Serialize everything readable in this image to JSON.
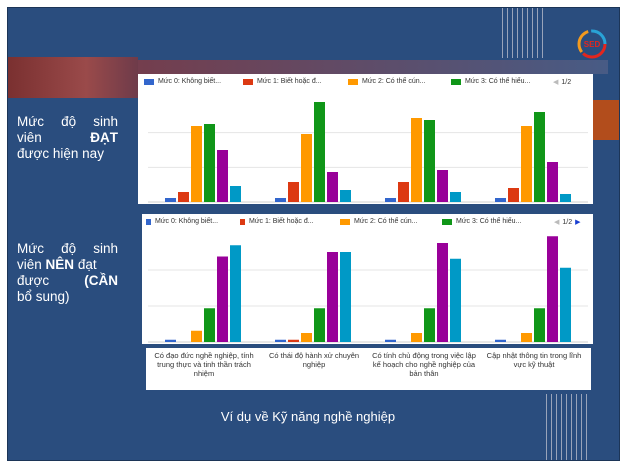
{
  "logo": {
    "text": "SED",
    "ring_colors": [
      "#e3261e",
      "#f39a1e",
      "#29a3d6"
    ]
  },
  "labels": {
    "current": {
      "line1": [
        "Mức",
        "độ",
        "sinh"
      ],
      "line2a": "viên",
      "line2b": "ĐẠT",
      "line3": "được hiện nay"
    },
    "desired": {
      "line1": [
        "Mức",
        "độ",
        "sinh"
      ],
      "line2a": "viên",
      "line2b": "NÊN",
      "line2c": "đạt",
      "line3a": "được",
      "line3b": "(CẦN",
      "line4": "bổ sung)"
    }
  },
  "caption": "Ví dụ về Kỹ năng nghề nghiệp",
  "legend": {
    "items": [
      {
        "label": "Mức 0: Không biết...",
        "color": "#3366cc"
      },
      {
        "label": "Mức 1: Biết hoặc đ...",
        "color": "#dc3912"
      },
      {
        "label": "Mức 2: Có thể cún...",
        "color": "#ff9900"
      },
      {
        "label": "Mức 3: Có thể hiểu...",
        "color": "#109618"
      }
    ],
    "page": "1/2"
  },
  "chart_data": [
    {
      "type": "bar",
      "categories": [
        "Có đạo đức nghề nghiệp, tính trung thực và tinh thần trách nhiệm",
        "Có thái độ hành xử chuyên nghiệp",
        "Có tính chủ động trong việc lập kế hoạch cho nghề nghiệp của bản thân",
        "Cập nhật thông tin trong lĩnh vực kỹ thuật"
      ],
      "series": [
        {
          "name": "Mức 0: Không biết...",
          "color": "#3366cc",
          "values": [
            2,
            2,
            2,
            2
          ]
        },
        {
          "name": "Mức 1: Biết hoặc đ...",
          "color": "#dc3912",
          "values": [
            5,
            10,
            10,
            7
          ]
        },
        {
          "name": "Mức 2: Có thể cún...",
          "color": "#ff9900",
          "values": [
            38,
            34,
            42,
            38
          ]
        },
        {
          "name": "Mức 3: Có thể hiểu...",
          "color": "#109618",
          "values": [
            39,
            50,
            41,
            45
          ]
        },
        {
          "color": "#990099",
          "values": [
            26,
            15,
            16,
            20
          ]
        },
        {
          "color": "#0099c6",
          "values": [
            8,
            6,
            5,
            4
          ]
        }
      ],
      "ylim": [
        0,
        52
      ]
    },
    {
      "type": "bar",
      "categories": [
        "Có đạo đức nghề nghiệp, tính trung thực và tinh thần trách nhiệm",
        "Có thái độ hành xử chuyên nghiệp",
        "Có tính chủ động trong việc lập kế hoạch cho nghề nghiệp của bản thân",
        "Cập nhật thông tin trong lĩnh vực kỹ thuật"
      ],
      "series": [
        {
          "name": "Mức 0: Không biết...",
          "color": "#3366cc",
          "values": [
            1,
            1,
            1,
            1
          ]
        },
        {
          "name": "Mức 1: Biết hoặc đ...",
          "color": "#dc3912",
          "values": [
            0,
            1,
            0,
            0
          ]
        },
        {
          "name": "Mức 2: Có thể cún...",
          "color": "#ff9900",
          "values": [
            5,
            4,
            4,
            4
          ]
        },
        {
          "name": "Mức 3: Có thể hiểu...",
          "color": "#109618",
          "values": [
            15,
            15,
            15,
            15
          ]
        },
        {
          "color": "#990099",
          "values": [
            38,
            40,
            44,
            47
          ]
        },
        {
          "color": "#0099c6",
          "values": [
            43,
            40,
            37,
            33
          ]
        }
      ],
      "ylim": [
        0,
        48
      ]
    }
  ]
}
